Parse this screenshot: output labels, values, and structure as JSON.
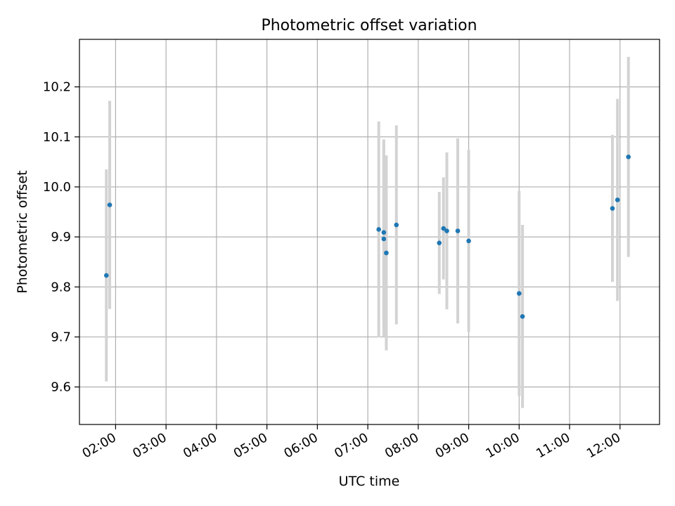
{
  "chart_data": {
    "type": "scatter",
    "title": "Photometric offset variation",
    "xlabel": "UTC time",
    "ylabel": "Photometric offset",
    "x_ticks": [
      "02:00",
      "03:00",
      "04:00",
      "05:00",
      "06:00",
      "07:00",
      "08:00",
      "09:00",
      "10:00",
      "11:00",
      "12:00"
    ],
    "y_ticks": [
      "9.6",
      "9.7",
      "9.8",
      "9.9",
      "10.0",
      "10.1",
      "10.2"
    ],
    "xlim": [
      "01:17",
      "12:47"
    ],
    "ylim": [
      9.525,
      10.295
    ],
    "grid": true,
    "series": [
      {
        "marker_color": "#1f77b4",
        "errorbar_color": "#d3d3d3",
        "points": [
          {
            "time": "01:49",
            "y": 9.823,
            "err": 0.212
          },
          {
            "time": "01:53",
            "y": 9.964,
            "err": 0.208
          },
          {
            "time": "07:13",
            "y": 9.915,
            "err": 0.216
          },
          {
            "time": "07:19",
            "y": 9.909,
            "err": 0.186
          },
          {
            "time": "07:19",
            "y": 9.896,
            "err": 0.196
          },
          {
            "time": "07:22",
            "y": 9.868,
            "err": 0.195
          },
          {
            "time": "07:34",
            "y": 9.924,
            "err": 0.199
          },
          {
            "time": "08:25",
            "y": 9.888,
            "err": 0.102
          },
          {
            "time": "08:30",
            "y": 9.917,
            "err": 0.102
          },
          {
            "time": "08:34",
            "y": 9.912,
            "err": 0.157
          },
          {
            "time": "08:47",
            "y": 9.912,
            "err": 0.185
          },
          {
            "time": "09:00",
            "y": 9.892,
            "err": 0.182
          },
          {
            "time": "10:00",
            "y": 9.787,
            "err": 0.205
          },
          {
            "time": "10:04",
            "y": 9.741,
            "err": 0.183
          },
          {
            "time": "11:51",
            "y": 9.957,
            "err": 0.147
          },
          {
            "time": "11:57",
            "y": 9.974,
            "err": 0.202
          },
          {
            "time": "12:10",
            "y": 10.06,
            "err": 0.2
          }
        ]
      }
    ]
  }
}
